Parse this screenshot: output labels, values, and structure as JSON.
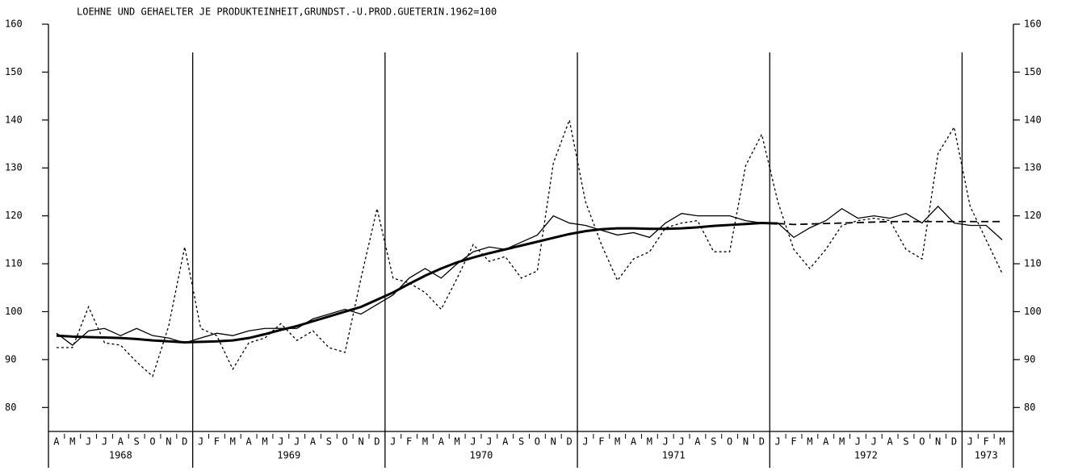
{
  "chart_data": {
    "type": "line",
    "title": "LOEHNE UND GEHAELTER JE PRODUKTEINHEIT,GRUNDST.-U.PROD.GUETERIN.1962=100",
    "categories": [
      "A",
      "M",
      "J",
      "J",
      "A",
      "S",
      "O",
      "N",
      "D",
      "J",
      "F",
      "M",
      "A",
      "M",
      "J",
      "J",
      "A",
      "S",
      "O",
      "N",
      "D",
      "J",
      "F",
      "M",
      "A",
      "M",
      "J",
      "J",
      "A",
      "S",
      "O",
      "N",
      "D",
      "J",
      "F",
      "M",
      "A",
      "M",
      "J",
      "J",
      "A",
      "S",
      "O",
      "N",
      "D",
      "J",
      "F",
      "M",
      "A",
      "M",
      "J",
      "J",
      "A",
      "S",
      "O",
      "N",
      "D",
      "J",
      "F",
      "M"
    ],
    "year_groups": [
      {
        "label": "1968",
        "months": 9
      },
      {
        "label": "1969",
        "months": 12
      },
      {
        "label": "1970",
        "months": 12
      },
      {
        "label": "1971",
        "months": 12
      },
      {
        "label": "1972",
        "months": 12
      },
      {
        "label": "1973",
        "months": 3
      }
    ],
    "series": [
      {
        "style": "dotted",
        "color": "#000000",
        "values": [
          92.5,
          92.5,
          101,
          93.5,
          93,
          89.5,
          86.5,
          97,
          113.5,
          96.5,
          95,
          88,
          93.5,
          94.5,
          97.5,
          94,
          96,
          92.5,
          91.5,
          107,
          121.5,
          107,
          106,
          104,
          100.5,
          107,
          114,
          110.5,
          111.5,
          107,
          108.5,
          131,
          140,
          123,
          114,
          106.5,
          111,
          112.5,
          117.5,
          118.5,
          119,
          112.5,
          112.5,
          130.5,
          137,
          123,
          113,
          109,
          113,
          118,
          119,
          119.5,
          119,
          113,
          111,
          133,
          138.5,
          122,
          115,
          108
        ]
      },
      {
        "style": "solid",
        "color": "#000000",
        "values": [
          95.5,
          93,
          96,
          96.5,
          95,
          96.5,
          95,
          94.5,
          93.5,
          94.5,
          95.5,
          95,
          96,
          96.5,
          96.5,
          96.5,
          98.5,
          99.5,
          100.5,
          99.5,
          101.5,
          103.5,
          107,
          109,
          107,
          110,
          112.5,
          113.5,
          113,
          114.5,
          116,
          120,
          118.5,
          118,
          117,
          116,
          116.5,
          115.5,
          118.5,
          120.5,
          120,
          120,
          120,
          119,
          118.5,
          118.5,
          115.5,
          117.5,
          119,
          121.5,
          119.5,
          120,
          119.5,
          120.5,
          118.5,
          122,
          118.5,
          118,
          118,
          115
        ]
      },
      {
        "style": "thick",
        "color": "#000000",
        "values": [
          95,
          94.8,
          94.7,
          94.6,
          94.5,
          94.3,
          94,
          93.8,
          93.6,
          93.7,
          93.8,
          94,
          94.5,
          95.3,
          96.2,
          97,
          98,
          99,
          100,
          101,
          102.5,
          104,
          105.8,
          107.5,
          109,
          110.3,
          111.3,
          112.2,
          113,
          113.8,
          114.6,
          115.4,
          116.2,
          116.8,
          117.2,
          117.4,
          117.4,
          117.3,
          117.3,
          117.4,
          117.6,
          117.9,
          118.1,
          118.3,
          118.5,
          118.4,
          null,
          null,
          null,
          null,
          null,
          null,
          null,
          null,
          null,
          null,
          null,
          null,
          null,
          null
        ]
      },
      {
        "style": "dashed",
        "color": "#000000",
        "values": [
          null,
          null,
          null,
          null,
          null,
          null,
          null,
          null,
          null,
          null,
          null,
          null,
          null,
          null,
          null,
          null,
          null,
          null,
          null,
          null,
          null,
          null,
          null,
          null,
          null,
          null,
          null,
          null,
          null,
          null,
          null,
          null,
          null,
          null,
          null,
          null,
          null,
          null,
          null,
          null,
          null,
          null,
          null,
          null,
          null,
          118.4,
          118.2,
          118.3,
          118.4,
          118.5,
          118.6,
          118.7,
          118.8,
          118.8,
          118.8,
          118.8,
          118.8,
          118.8,
          118.8,
          118.8
        ]
      }
    ],
    "ylim": [
      75,
      160
    ],
    "yticks": [
      80,
      90,
      100,
      110,
      120,
      130,
      140,
      150,
      160
    ]
  }
}
